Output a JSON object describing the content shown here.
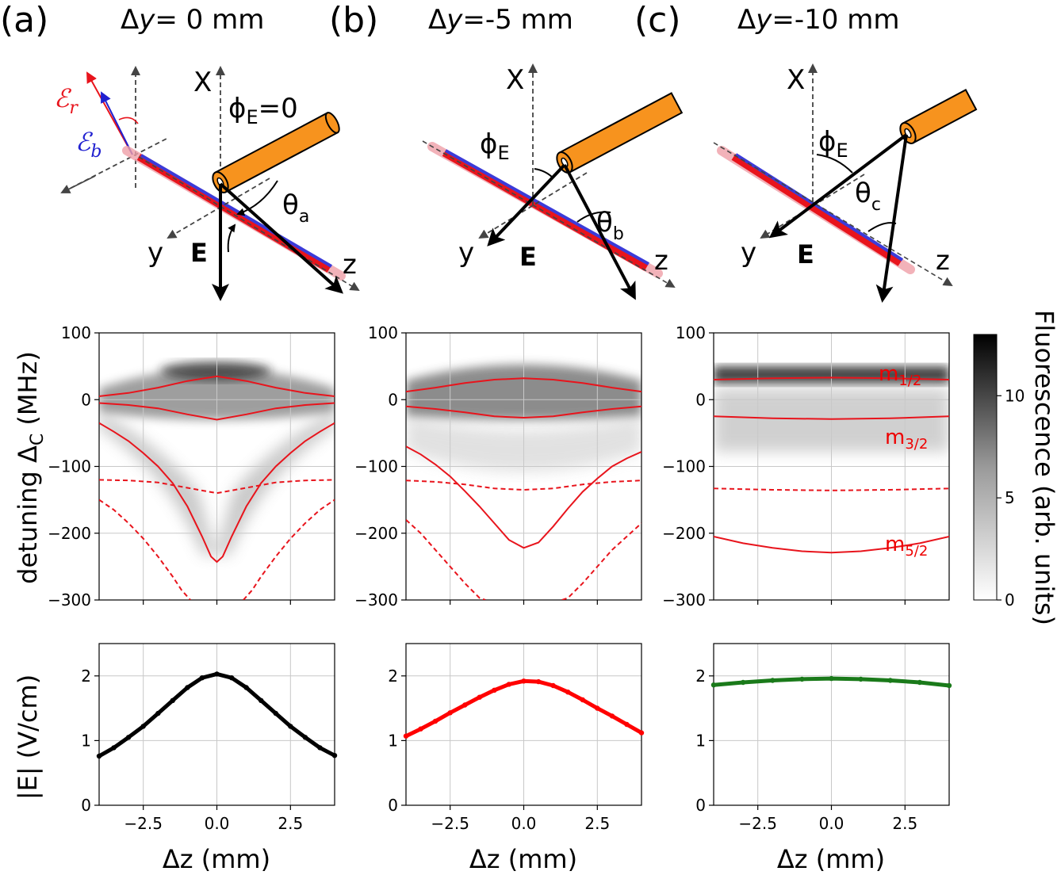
{
  "panels": [
    {
      "label": "(a)",
      "title_prefix": "Δ",
      "title_var": "y",
      "title_value": "= 0 mm",
      "phi_label": "ϕ",
      "phi_sub": "E",
      "phi_suffix": "=0",
      "theta_label": "θ",
      "theta_sub": "a"
    },
    {
      "label": "(b)",
      "title_prefix": "Δ",
      "title_var": "y",
      "title_value": "=-5 mm",
      "phi_label": "ϕ",
      "phi_sub": "E",
      "phi_suffix": "",
      "theta_label": "θ",
      "theta_sub": "b"
    },
    {
      "label": "(c)",
      "title_prefix": "Δ",
      "title_var": "y",
      "title_value": "=-10 mm",
      "phi_label": "ϕ",
      "phi_sub": "E",
      "phi_suffix": "",
      "theta_label": "θ",
      "theta_sub": "c"
    }
  ],
  "diagram": {
    "axis_x": "X",
    "axis_y": "y",
    "axis_z": "z",
    "field": "E",
    "eps_r": "ℰ",
    "eps_r_sub": "r",
    "eps_b": "ℰ",
    "eps_b_sub": "b"
  },
  "colors": {
    "fit": "#e8141c",
    "red_line": "#ff0000",
    "black_line": "#000000",
    "green_line": "#1a7a1a",
    "fiber": "#f7931e",
    "beam_red": "#e8141c",
    "beam_blue": "#3b3bd9"
  },
  "mlabels": [
    {
      "m": "m",
      "sub": "1/2"
    },
    {
      "m": "m",
      "sub": "3/2"
    },
    {
      "m": "m",
      "sub": "5/2"
    }
  ],
  "colorbar": {
    "label": "Fluorescence (arb. units)",
    "ticks": [
      "0",
      "5",
      "10"
    ],
    "tick_values": [
      0,
      5,
      10
    ],
    "max": 13
  },
  "chart_data": [
    {
      "type": "heatmap",
      "title": "Δy= 0 mm",
      "xlabel": "",
      "ylabel": "detuning Δ_C (MHz)",
      "xlim": [
        -4,
        4
      ],
      "ylim": [
        -300,
        100
      ],
      "yticks": [
        "100",
        "0",
        "−100",
        "−200",
        "−300"
      ],
      "ytick_values": [
        100,
        0,
        -100,
        -200,
        -300
      ],
      "xticks": [
        -2.5,
        0.0,
        2.5
      ],
      "lines": [
        {
          "name": "m1/2 upper",
          "style": "solid",
          "x": [
            -4,
            -3,
            -2,
            -1,
            0,
            1,
            2,
            3,
            4
          ],
          "y": [
            5,
            10,
            18,
            28,
            35,
            28,
            18,
            10,
            5
          ]
        },
        {
          "name": "m3/2 lower",
          "style": "solid",
          "x": [
            -4,
            -3,
            -2,
            -1,
            0,
            1,
            2,
            3,
            4
          ],
          "y": [
            -5,
            -8,
            -13,
            -22,
            -30,
            -22,
            -13,
            -8,
            -5
          ]
        },
        {
          "name": "m5/2 solid",
          "style": "solid",
          "x": [
            -4,
            -3.5,
            -3,
            -2.5,
            -2,
            -1.5,
            -1,
            -0.5,
            -0.2,
            0,
            0.2,
            0.5,
            1,
            1.5,
            2,
            2.5,
            3,
            3.5,
            4
          ],
          "y": [
            -35,
            -48,
            -62,
            -80,
            -100,
            -125,
            -160,
            -205,
            -235,
            -243,
            -235,
            -205,
            -160,
            -125,
            -100,
            -80,
            -62,
            -48,
            -35
          ]
        },
        {
          "name": "dashed upper",
          "style": "dashed",
          "x": [
            -4,
            -3,
            -2,
            -1,
            0,
            1,
            2,
            3,
            4
          ],
          "y": [
            -120,
            -121,
            -124,
            -132,
            -140,
            -132,
            -124,
            -121,
            -120
          ]
        },
        {
          "name": "dashed lower",
          "style": "dashed",
          "x": [
            -4,
            -3.5,
            -3,
            -2.5,
            -2,
            -1.5,
            -1.2,
            -0.9
          ],
          "y": [
            -150,
            -165,
            -185,
            -208,
            -235,
            -265,
            -285,
            -300
          ]
        },
        {
          "name": "dashed lower r",
          "style": "dashed",
          "x": [
            0.9,
            1.2,
            1.5,
            2,
            2.5,
            3,
            3.5,
            4
          ],
          "y": [
            -300,
            -285,
            -265,
            -235,
            -208,
            -185,
            -165,
            -150
          ]
        }
      ]
    },
    {
      "type": "heatmap",
      "title": "Δy=-5 mm",
      "xlim": [
        -4,
        4
      ],
      "ylim": [
        -300,
        100
      ],
      "yticks": [
        "100",
        "0",
        "−100",
        "−200",
        "−300"
      ],
      "ytick_values": [
        100,
        0,
        -100,
        -200,
        -300
      ],
      "xticks": [
        -2.5,
        0.0,
        2.5
      ],
      "lines": [
        {
          "name": "m1/2 upper",
          "style": "solid",
          "x": [
            -4,
            -3,
            -2,
            -1,
            0,
            1,
            2,
            3,
            4
          ],
          "y": [
            12,
            18,
            25,
            30,
            32,
            30,
            25,
            18,
            12
          ]
        },
        {
          "name": "m3/2 lower",
          "style": "solid",
          "x": [
            -4,
            -3,
            -2,
            -1,
            0,
            1,
            2,
            3,
            4
          ],
          "y": [
            -10,
            -14,
            -19,
            -25,
            -27,
            -25,
            -19,
            -14,
            -10
          ]
        },
        {
          "name": "m5/2 solid",
          "style": "solid",
          "x": [
            -4,
            -3.5,
            -3,
            -2.5,
            -2,
            -1.5,
            -1,
            -0.5,
            0,
            0.5,
            1,
            1.5,
            2,
            2.5,
            3,
            3.5,
            4
          ],
          "y": [
            -70,
            -82,
            -97,
            -115,
            -137,
            -160,
            -185,
            -210,
            -222,
            -214,
            -190,
            -163,
            -138,
            -118,
            -100,
            -88,
            -78
          ]
        },
        {
          "name": "dashed upper",
          "style": "dashed",
          "x": [
            -4,
            -3,
            -2,
            -1,
            0,
            1,
            2,
            3,
            4
          ],
          "y": [
            -121,
            -123,
            -127,
            -133,
            -135,
            -133,
            -127,
            -123,
            -121
          ]
        },
        {
          "name": "dashed lower",
          "style": "dashed",
          "x": [
            -4,
            -3.5,
            -3,
            -2.5,
            -2,
            -1.5,
            -1.3
          ],
          "y": [
            -180,
            -200,
            -225,
            -250,
            -275,
            -297,
            -300
          ]
        },
        {
          "name": "dashed lower r",
          "style": "dashed",
          "x": [
            1.3,
            1.5,
            2,
            2.5,
            3,
            3.5,
            4
          ],
          "y": [
            -300,
            -297,
            -275,
            -250,
            -225,
            -205,
            -185
          ]
        }
      ]
    },
    {
      "type": "heatmap",
      "title": "Δy=-10 mm",
      "xlim": [
        -4,
        4
      ],
      "ylim": [
        -300,
        100
      ],
      "yticks": [
        "100",
        "0",
        "−100",
        "−200",
        "−300"
      ],
      "ytick_values": [
        100,
        0,
        -100,
        -200,
        -300
      ],
      "xticks": [
        -2.5,
        0.0,
        2.5
      ],
      "lines": [
        {
          "name": "m1/2 upper",
          "style": "solid",
          "x": [
            -4,
            -2,
            0,
            2,
            4
          ],
          "y": [
            30,
            32,
            33,
            32,
            30
          ]
        },
        {
          "name": "m3/2 lower",
          "style": "solid",
          "x": [
            -4,
            -2,
            0,
            2,
            4
          ],
          "y": [
            -25,
            -28,
            -29,
            -28,
            -25
          ]
        },
        {
          "name": "m5/2 solid",
          "style": "solid",
          "x": [
            -4,
            -3,
            -2,
            -1,
            0,
            1,
            2,
            3,
            4
          ],
          "y": [
            -205,
            -215,
            -222,
            -227,
            -229,
            -227,
            -222,
            -215,
            -205
          ]
        },
        {
          "name": "dashed upper",
          "style": "dashed",
          "x": [
            -4,
            -2,
            0,
            2,
            4
          ],
          "y": [
            -133,
            -135,
            -136,
            -135,
            -133
          ]
        }
      ]
    },
    {
      "type": "line",
      "xlabel": "Δz (mm)",
      "ylabel": "|E| (V/cm)",
      "xlim": [
        -4,
        4
      ],
      "ylim": [
        0,
        2.5
      ],
      "xticks": [
        "−2.5",
        "0.0",
        "2.5"
      ],
      "xtick_values": [
        -2.5,
        0,
        2.5
      ],
      "yticks": [
        "0",
        "1",
        "2"
      ],
      "ytick_values": [
        0,
        1,
        2
      ],
      "series": [
        {
          "name": "Δy=0",
          "color": "#000000",
          "x": [
            -4,
            -3.5,
            -3,
            -2.5,
            -2,
            -1.5,
            -1,
            -0.5,
            0,
            0.5,
            1,
            1.5,
            2,
            2.5,
            3,
            3.5,
            4
          ],
          "y": [
            0.76,
            0.89,
            1.05,
            1.22,
            1.42,
            1.62,
            1.82,
            1.97,
            2.03,
            1.97,
            1.82,
            1.62,
            1.42,
            1.22,
            1.05,
            0.89,
            0.77
          ]
        }
      ]
    },
    {
      "type": "line",
      "xlabel": "Δz (mm)",
      "xlim": [
        -4,
        4
      ],
      "ylim": [
        0,
        2.5
      ],
      "xticks": [
        "−2.5",
        "0.0",
        "2.5"
      ],
      "xtick_values": [
        -2.5,
        0,
        2.5
      ],
      "yticks": [
        "0",
        "1",
        "2"
      ],
      "ytick_values": [
        0,
        1,
        2
      ],
      "series": [
        {
          "name": "Δy=-5",
          "color": "#ff0000",
          "x": [
            -4,
            -3.5,
            -3,
            -2.5,
            -2,
            -1.5,
            -1,
            -0.5,
            0,
            0.5,
            1,
            1.5,
            2,
            2.5,
            3,
            3.5,
            4
          ],
          "y": [
            1.07,
            1.18,
            1.3,
            1.43,
            1.55,
            1.67,
            1.78,
            1.87,
            1.92,
            1.91,
            1.85,
            1.75,
            1.63,
            1.5,
            1.38,
            1.25,
            1.12
          ]
        }
      ]
    },
    {
      "type": "line",
      "xlabel": "Δz (mm)",
      "xlim": [
        -4,
        4
      ],
      "ylim": [
        0,
        2.5
      ],
      "xticks": [
        "−2.5",
        "0.0",
        "2.5"
      ],
      "xtick_values": [
        -2.5,
        0,
        2.5
      ],
      "yticks": [
        "0",
        "1",
        "2"
      ],
      "ytick_values": [
        0,
        1,
        2
      ],
      "series": [
        {
          "name": "Δy=-10",
          "color": "#1a7a1a",
          "x": [
            -4,
            -3,
            -2,
            -1,
            0,
            1,
            2,
            3,
            4
          ],
          "y": [
            1.86,
            1.9,
            1.93,
            1.95,
            1.96,
            1.95,
            1.93,
            1.9,
            1.85
          ]
        }
      ]
    }
  ]
}
